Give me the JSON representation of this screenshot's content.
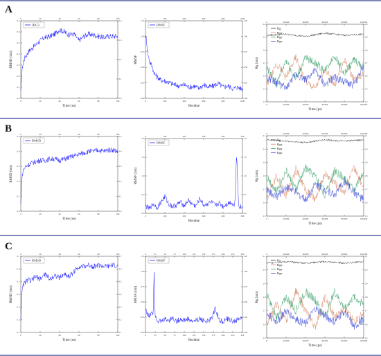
{
  "figure": {
    "panels": [
      "A",
      "B",
      "C"
    ]
  },
  "chart_data": [
    {
      "panel": "A",
      "type": "line",
      "ylabel": "RMSD (nm)",
      "xlabel": "Time (ns)",
      "xlim": [
        0,
        100
      ],
      "ylim": [
        0,
        0.7
      ],
      "ylim_right": [
        0,
        0.4
      ],
      "xticks": [
        "0",
        "20",
        "40",
        "60",
        "80",
        "100"
      ],
      "yticks": [
        "0.0",
        "0.1",
        "0.2",
        "0.3",
        "0.4",
        "0.5",
        "0.6",
        "0.7"
      ],
      "yticks_right": [
        "0.0",
        "0.1",
        "0.2",
        "0.3",
        "0.4"
      ],
      "series": [
        {
          "name": "JHG3",
          "color": "#1a1aff",
          "x": [
            0,
            1,
            2,
            3,
            5,
            8,
            10,
            15,
            20,
            25,
            30,
            35,
            40,
            45,
            50,
            55,
            60,
            65,
            70,
            75,
            80,
            85,
            90,
            95,
            100
          ],
          "y": [
            0.05,
            0.22,
            0.3,
            0.34,
            0.38,
            0.42,
            0.44,
            0.48,
            0.52,
            0.55,
            0.56,
            0.58,
            0.62,
            0.6,
            0.57,
            0.58,
            0.52,
            0.56,
            0.58,
            0.57,
            0.56,
            0.55,
            0.56,
            0.56,
            0.56
          ]
        }
      ]
    },
    {
      "panel": "A",
      "type": "line",
      "ylabel": "RMSF",
      "xlabel": "Residue",
      "xlim": [
        0,
        1000
      ],
      "ylim": [
        0,
        1.25
      ],
      "ylim_right": [
        0,
        1.25
      ],
      "xticks": [
        "0",
        "200",
        "400",
        "600",
        "800",
        "1000"
      ],
      "yticks": [
        "0.00",
        "0.25",
        "0.50",
        "0.75",
        "1.00",
        "1.25"
      ],
      "yticks_right": [
        "0.00",
        "0.25",
        "0.50",
        "0.75",
        "1.00",
        "1.25"
      ],
      "series": [
        {
          "name": "RMSF",
          "color": "#1a1aff",
          "x": [
            0,
            10,
            20,
            40,
            60,
            80,
            100,
            150,
            200,
            250,
            300,
            350,
            400,
            450,
            500,
            550,
            600,
            650,
            700,
            750,
            800,
            850,
            900,
            950,
            1000
          ],
          "y": [
            1.0,
            0.95,
            0.78,
            0.6,
            0.55,
            0.45,
            0.38,
            0.3,
            0.28,
            0.25,
            0.22,
            0.2,
            0.22,
            0.18,
            0.2,
            0.16,
            0.22,
            0.18,
            0.2,
            0.24,
            0.18,
            0.2,
            0.16,
            0.18,
            0.15
          ]
        }
      ]
    },
    {
      "panel": "A",
      "type": "line",
      "ylabel": "Rg (nm)",
      "xlabel": "Time (ps)",
      "xlim": [
        0,
        100000
      ],
      "ylim": [
        1.4,
        2.1
      ],
      "ylim_right": [
        1.4,
        2.1
      ],
      "xticks": [
        "0",
        "20,000",
        "40,000",
        "60,000",
        "80,000",
        "100,000"
      ],
      "yticks": [
        "1.4",
        "1.5",
        "1.6",
        "1.7",
        "1.8",
        "1.9",
        "2.0"
      ],
      "yticks_right": [
        "1.4",
        "1.5",
        "1.6",
        "1.7",
        "1.8",
        "1.9",
        "2.0"
      ],
      "series": [
        {
          "name": "Rg",
          "color": "#333333",
          "x": [
            0,
            20000,
            40000,
            60000,
            80000,
            100000
          ],
          "y": [
            2.0,
            2.01,
            1.99,
            2.02,
            2.0,
            2.01
          ]
        },
        {
          "name": "Rgx",
          "color": "#d98a6a",
          "x": [
            0,
            10000,
            20000,
            30000,
            40000,
            50000,
            60000,
            70000,
            80000,
            90000,
            100000
          ],
          "y": [
            1.55,
            1.75,
            1.62,
            1.8,
            1.58,
            1.52,
            1.7,
            1.55,
            1.78,
            1.6,
            1.65
          ]
        },
        {
          "name": "Rgy",
          "color": "#3aa06a",
          "x": [
            0,
            10000,
            20000,
            30000,
            40000,
            50000,
            60000,
            70000,
            80000,
            90000,
            100000
          ],
          "y": [
            1.72,
            1.55,
            1.78,
            1.6,
            1.8,
            1.75,
            1.68,
            1.82,
            1.65,
            1.78,
            1.7
          ]
        },
        {
          "name": "Rgz",
          "color": "#3a4bd8",
          "x": [
            0,
            10000,
            20000,
            30000,
            40000,
            50000,
            60000,
            70000,
            80000,
            90000,
            100000
          ],
          "y": [
            1.62,
            1.58,
            1.52,
            1.65,
            1.6,
            1.68,
            1.55,
            1.62,
            1.58,
            1.55,
            1.72
          ]
        }
      ]
    },
    {
      "panel": "B",
      "type": "line",
      "ylabel": "RMSD (nm)",
      "xlabel": "Time (ns)",
      "xlim": [
        0,
        100
      ],
      "ylim": [
        0,
        0.5
      ],
      "ylim_right": [
        0,
        0.5
      ],
      "xticks": [
        "0",
        "20",
        "40",
        "60",
        "80",
        "100"
      ],
      "yticks": [
        "0.0",
        "0.1",
        "0.2",
        "0.3",
        "0.4",
        "0.5"
      ],
      "yticks_right": [
        "0.0",
        "0.1",
        "0.2",
        "0.3",
        "0.4",
        "0.5"
      ],
      "series": [
        {
          "name": "RMSD",
          "color": "#1a1aff",
          "x": [
            0,
            1,
            2,
            3,
            5,
            8,
            10,
            15,
            20,
            25,
            30,
            35,
            40,
            45,
            50,
            55,
            60,
            65,
            70,
            75,
            80,
            85,
            90,
            95,
            100
          ],
          "y": [
            0.05,
            0.2,
            0.26,
            0.28,
            0.3,
            0.31,
            0.32,
            0.33,
            0.34,
            0.34,
            0.35,
            0.35,
            0.34,
            0.35,
            0.36,
            0.37,
            0.38,
            0.39,
            0.4,
            0.4,
            0.41,
            0.4,
            0.41,
            0.41,
            0.4
          ]
        }
      ]
    },
    {
      "panel": "B",
      "type": "line",
      "ylabel": "RMSF (nm)",
      "xlabel": "Residue",
      "xlim": [
        0,
        500
      ],
      "ylim": [
        0,
        2.0
      ],
      "ylim_right": [
        0,
        2.0
      ],
      "xticks": [
        "0",
        "100",
        "200",
        "300",
        "400",
        "500"
      ],
      "yticks": [
        "0.0",
        "0.5",
        "1.0",
        "1.5",
        "2.0"
      ],
      "yticks_right": [
        "0.0",
        "0.5",
        "1.0",
        "1.5",
        "2.0"
      ],
      "series": [
        {
          "name": "RMSF",
          "color": "#1a1aff",
          "x": [
            0,
            20,
            40,
            60,
            80,
            100,
            120,
            140,
            160,
            180,
            200,
            220,
            240,
            260,
            280,
            300,
            320,
            340,
            360,
            380,
            400,
            420,
            440,
            460,
            470,
            480,
            500
          ],
          "y": [
            0.2,
            0.12,
            0.25,
            0.15,
            0.3,
            0.45,
            0.25,
            0.18,
            0.22,
            0.3,
            0.2,
            0.35,
            0.25,
            0.18,
            0.4,
            0.22,
            0.25,
            0.3,
            0.2,
            0.28,
            0.18,
            0.25,
            0.3,
            0.2,
            1.65,
            0.2,
            0.15
          ]
        }
      ]
    },
    {
      "panel": "B",
      "type": "line",
      "ylabel": "Rg (nm)",
      "xlabel": "Time (ps)",
      "xlim": [
        0,
        100000
      ],
      "ylim": [
        1.5,
        2.1
      ],
      "ylim_right": [
        1.5,
        2.1
      ],
      "xticks": [
        "0",
        "20,000",
        "40,000",
        "60,000",
        "80,000",
        "100,000"
      ],
      "yticks": [
        "1.5",
        "1.6",
        "1.7",
        "1.8",
        "1.9",
        "2.0",
        "2.1"
      ],
      "yticks_right": [
        "1.5",
        "1.6",
        "1.7",
        "1.8",
        "1.9",
        "2.0",
        "2.1"
      ],
      "series": [
        {
          "name": "Rg",
          "color": "#333333",
          "x": [
            0,
            20000,
            40000,
            60000,
            80000,
            100000
          ],
          "y": [
            2.07,
            2.06,
            2.05,
            2.07,
            2.06,
            2.07
          ]
        },
        {
          "name": "Rgx",
          "color": "#d98a6a",
          "x": [
            0,
            10000,
            20000,
            30000,
            40000,
            50000,
            60000,
            70000,
            80000,
            90000,
            100000
          ],
          "y": [
            1.62,
            1.8,
            1.65,
            1.85,
            1.7,
            1.62,
            1.82,
            1.75,
            1.68,
            1.86,
            1.72
          ]
        },
        {
          "name": "Rgy",
          "color": "#3aa06a",
          "x": [
            0,
            10000,
            20000,
            30000,
            40000,
            50000,
            60000,
            70000,
            80000,
            90000,
            100000
          ],
          "y": [
            1.8,
            1.68,
            1.84,
            1.7,
            1.86,
            1.8,
            1.66,
            1.84,
            1.78,
            1.7,
            1.82
          ]
        },
        {
          "name": "Rgz",
          "color": "#3a4bd8",
          "x": [
            0,
            10000,
            20000,
            30000,
            40000,
            50000,
            60000,
            70000,
            80000,
            90000,
            100000
          ],
          "y": [
            1.7,
            1.64,
            1.72,
            1.68,
            1.62,
            1.74,
            1.7,
            1.66,
            1.76,
            1.68,
            1.62
          ]
        }
      ]
    },
    {
      "panel": "C",
      "type": "line",
      "ylabel": "RMSD (nm)",
      "xlabel": "Time (ns)",
      "xlim": [
        0,
        100
      ],
      "ylim": [
        0.1,
        0.7
      ],
      "ylim_right": [
        0.1,
        0.7
      ],
      "xticks": [
        "0",
        "20",
        "40",
        "60",
        "80",
        "100"
      ],
      "yticks": [
        "0.1",
        "0.2",
        "0.3",
        "0.4",
        "0.5",
        "0.6",
        "0.7"
      ],
      "yticks_right": [
        "0.1",
        "0.2",
        "0.3",
        "0.4",
        "0.5",
        "0.6",
        "0.7"
      ],
      "series": [
        {
          "name": "RMSD",
          "color": "#1a1aff",
          "x": [
            0,
            1,
            2,
            3,
            5,
            8,
            10,
            15,
            20,
            25,
            30,
            35,
            40,
            45,
            50,
            55,
            60,
            65,
            70,
            75,
            80,
            85,
            90,
            95,
            100
          ],
          "y": [
            0.2,
            0.4,
            0.45,
            0.48,
            0.5,
            0.52,
            0.5,
            0.54,
            0.52,
            0.56,
            0.52,
            0.55,
            0.53,
            0.56,
            0.54,
            0.58,
            0.62,
            0.62,
            0.63,
            0.62,
            0.63,
            0.62,
            0.62,
            0.63,
            0.62
          ]
        }
      ]
    },
    {
      "panel": "C",
      "type": "line",
      "ylabel": "RMSF (nm)",
      "xlabel": "Residue",
      "xlim": [
        0,
        250
      ],
      "ylim": [
        0,
        1.25
      ],
      "ylim_right": [
        0,
        1.25
      ],
      "xticks": [
        "0",
        "25",
        "50",
        "75",
        "100",
        "125",
        "150",
        "175",
        "200",
        "225",
        "250"
      ],
      "yticks": [
        "0.00",
        "0.25",
        "0.50",
        "0.75",
        "1.00",
        "1.25"
      ],
      "yticks_right": [
        "0.00",
        "0.25",
        "0.50",
        "0.75",
        "1.00",
        "1.25"
      ],
      "series": [
        {
          "name": "RMSF",
          "color": "#1a1aff",
          "x": [
            0,
            5,
            10,
            15,
            20,
            22,
            25,
            30,
            40,
            50,
            60,
            70,
            80,
            90,
            100,
            110,
            120,
            130,
            140,
            150,
            160,
            170,
            180,
            190,
            200,
            210,
            220,
            230,
            240,
            250
          ],
          "y": [
            0.4,
            0.3,
            0.25,
            0.35,
            0.3,
            1.05,
            0.3,
            0.2,
            0.18,
            0.22,
            0.2,
            0.24,
            0.18,
            0.22,
            0.2,
            0.22,
            0.18,
            0.2,
            0.22,
            0.2,
            0.18,
            0.22,
            0.4,
            0.2,
            0.18,
            0.22,
            0.2,
            0.18,
            0.22,
            0.25
          ]
        }
      ]
    },
    {
      "panel": "C",
      "type": "line",
      "ylabel": "Rg (nm)",
      "xlabel": "Time (ps)",
      "xlim": [
        0,
        100000
      ],
      "ylim": [
        1.5,
        2.1
      ],
      "ylim_right": [
        1.5,
        2.1
      ],
      "xticks": [
        "0",
        "20,000",
        "40,000",
        "60,000",
        "80,000",
        "100,000"
      ],
      "yticks": [
        "1.5",
        "1.6",
        "1.7",
        "1.8",
        "1.9",
        "2.0",
        "2.1"
      ],
      "yticks_right": [
        "1.5",
        "1.6",
        "1.7",
        "1.8",
        "1.9",
        "2.0",
        "2.1"
      ],
      "series": [
        {
          "name": "Rg",
          "color": "#333333",
          "x": [
            0,
            20000,
            40000,
            60000,
            80000,
            100000
          ],
          "y": [
            2.05,
            2.06,
            2.05,
            2.06,
            2.05,
            2.06
          ]
        },
        {
          "name": "Rgx",
          "color": "#d98a6a",
          "x": [
            0,
            10000,
            20000,
            30000,
            40000,
            50000,
            60000,
            70000,
            80000,
            90000,
            100000
          ],
          "y": [
            1.6,
            1.75,
            1.62,
            1.85,
            1.7,
            1.58,
            1.8,
            1.65,
            1.72,
            1.62,
            1.68
          ]
        },
        {
          "name": "Rgy",
          "color": "#3aa06a",
          "x": [
            0,
            10000,
            20000,
            30000,
            40000,
            50000,
            60000,
            70000,
            80000,
            90000,
            100000
          ],
          "y": [
            1.82,
            1.65,
            1.8,
            1.7,
            1.84,
            1.78,
            1.66,
            1.84,
            1.72,
            1.8,
            1.75
          ]
        },
        {
          "name": "Rgz",
          "color": "#3a4bd8",
          "x": [
            0,
            10000,
            20000,
            30000,
            40000,
            50000,
            60000,
            70000,
            80000,
            90000,
            100000
          ],
          "y": [
            1.68,
            1.62,
            1.7,
            1.64,
            1.6,
            1.72,
            1.66,
            1.62,
            1.7,
            1.58,
            1.64
          ]
        }
      ]
    }
  ]
}
